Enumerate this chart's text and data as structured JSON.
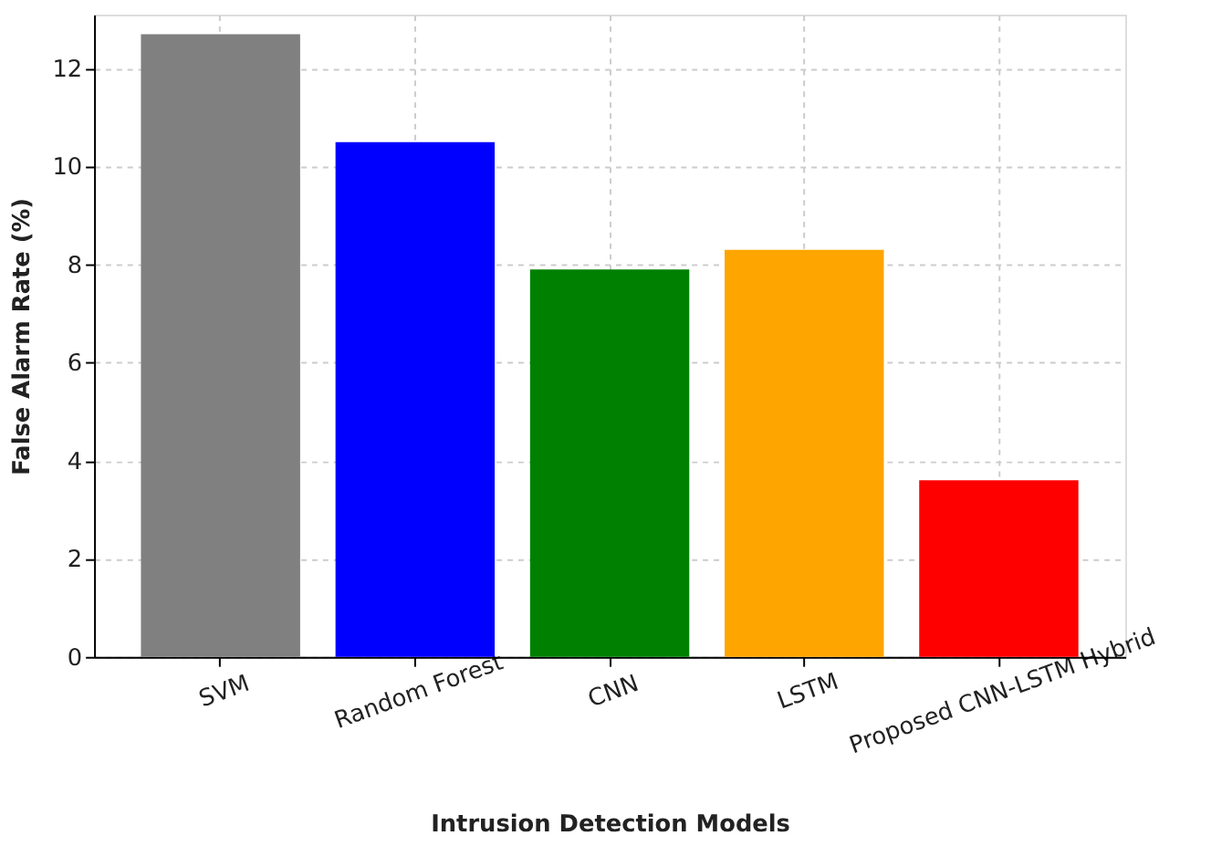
{
  "chart_data": {
    "type": "bar",
    "xlabel": "Intrusion Detection Models",
    "ylabel": "False Alarm Rate (%)",
    "categories": [
      "SVM",
      "Random Forest",
      "CNN",
      "LSTM",
      "Proposed CNN-LSTM Hybrid"
    ],
    "values": [
      12.7,
      10.5,
      7.9,
      8.3,
      3.6
    ],
    "colors": [
      "#808080",
      "#0000ff",
      "#008000",
      "#ffa500",
      "#ff0000"
    ],
    "ylim": [
      0,
      13.1
    ],
    "yticks": [
      0,
      2,
      4,
      6,
      8,
      10,
      12
    ],
    "grid": true
  }
}
